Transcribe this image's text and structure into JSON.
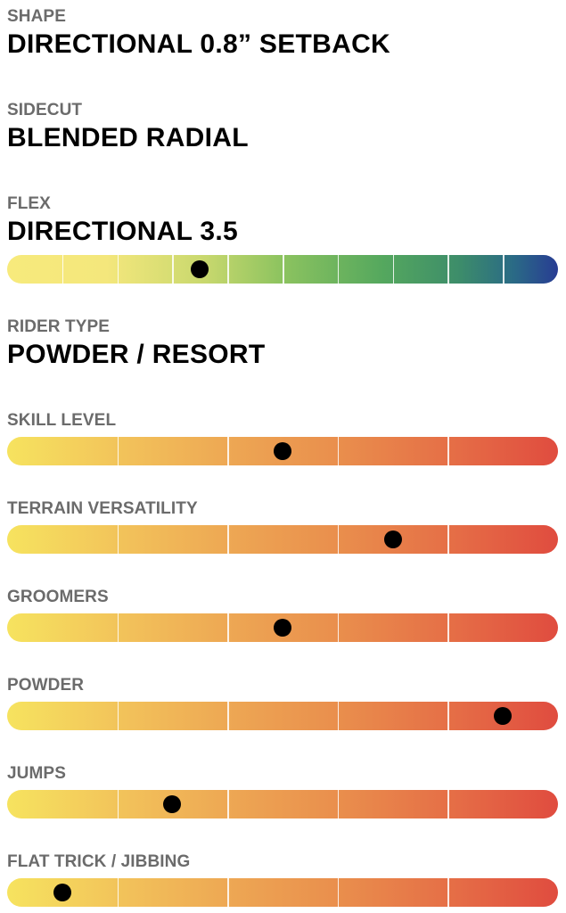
{
  "specs": [
    {
      "label": "SHAPE",
      "value": "DIRECTIONAL 0.8” SETBACK"
    },
    {
      "label": "SIDECUT",
      "value": "BLENDED RADIAL"
    },
    {
      "label": "FLEX",
      "value": "DIRECTIONAL 3.5"
    },
    {
      "label": "RIDER TYPE",
      "value": "POWDER / RESORT"
    }
  ],
  "flex_scale": {
    "segments": 10,
    "level": 3.5
  },
  "ratings": [
    {
      "label": "SKILL LEVEL",
      "segments": 5,
      "level": 2.5
    },
    {
      "label": "TERRAIN VERSATILITY",
      "segments": 5,
      "level": 3.5
    },
    {
      "label": "GROOMERS",
      "segments": 5,
      "level": 2.5
    },
    {
      "label": "POWDER",
      "segments": 5,
      "level": 4.5
    },
    {
      "label": "JUMPS",
      "segments": 5,
      "level": 1.5
    },
    {
      "label": "FLAT TRICK / JIBBING",
      "segments": 5,
      "level": 0.5
    }
  ],
  "colors": {
    "label": "#6b6b6b",
    "value": "#000000",
    "marker": "#000000"
  }
}
